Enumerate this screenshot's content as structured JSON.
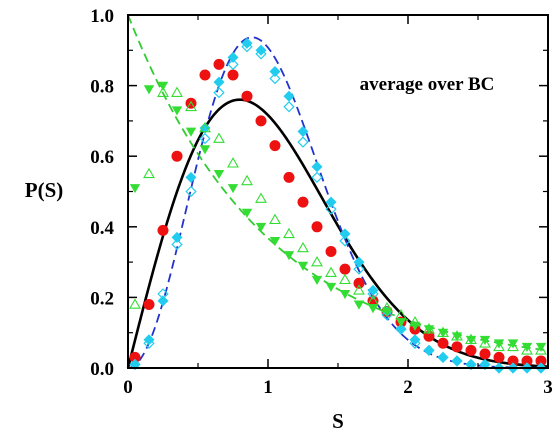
{
  "chart_data": {
    "type": "scatter",
    "xlabel": "S",
    "ylabel": "P(S)",
    "annotation": "average over BC",
    "xlim": [
      0,
      3
    ],
    "ylim": [
      0,
      1
    ],
    "xticks": [
      "0",
      "1",
      "2",
      "3"
    ],
    "yticks": [
      "0.0",
      "0.2",
      "0.4",
      "0.6",
      "0.8",
      "1.0"
    ],
    "grid": false,
    "curves": [
      {
        "id": "black-solid",
        "color": "#000000",
        "dash": "none",
        "func": "goe"
      },
      {
        "id": "blue-dashed",
        "color": "#2233cc",
        "dash": "dashed",
        "func": "gue"
      },
      {
        "id": "green-dashed",
        "color": "#33cc33",
        "dash": "dashed",
        "func": "poisson"
      }
    ],
    "series": [
      {
        "marker": "circle-filled",
        "color": "#ee1111",
        "x": [
          0.05,
          0.15,
          0.25,
          0.35,
          0.45,
          0.55,
          0.65,
          0.75,
          0.85,
          0.95,
          1.05,
          1.15,
          1.25,
          1.35,
          1.45,
          1.55,
          1.65,
          1.75,
          1.85,
          1.95,
          2.05,
          2.15,
          2.25,
          2.35,
          2.45,
          2.55,
          2.65,
          2.75,
          2.85,
          2.95
        ],
        "y": [
          0.03,
          0.18,
          0.39,
          0.6,
          0.75,
          0.83,
          0.86,
          0.83,
          0.77,
          0.7,
          0.63,
          0.54,
          0.47,
          0.4,
          0.33,
          0.28,
          0.24,
          0.19,
          0.16,
          0.13,
          0.11,
          0.09,
          0.07,
          0.06,
          0.05,
          0.04,
          0.03,
          0.02,
          0.02,
          0.02
        ]
      },
      {
        "marker": "diamond-filled",
        "color": "#22ccee",
        "x": [
          0.05,
          0.15,
          0.25,
          0.35,
          0.45,
          0.55,
          0.65,
          0.75,
          0.85,
          0.95,
          1.05,
          1.15,
          1.25,
          1.35,
          1.45,
          1.55,
          1.65,
          1.75,
          1.85,
          1.95,
          2.05,
          2.15,
          2.25,
          2.35,
          2.45,
          2.55,
          2.65,
          2.75,
          2.85,
          2.95
        ],
        "y": [
          0.01,
          0.08,
          0.19,
          0.37,
          0.54,
          0.68,
          0.81,
          0.88,
          0.92,
          0.9,
          0.84,
          0.77,
          0.67,
          0.57,
          0.47,
          0.38,
          0.3,
          0.22,
          0.16,
          0.11,
          0.08,
          0.05,
          0.03,
          0.02,
          0.01,
          0.01,
          0.0,
          0.0,
          0.0,
          0.0
        ]
      },
      {
        "marker": "diamond-open",
        "color": "#22ccee",
        "x": [
          0.05,
          0.15,
          0.25,
          0.35,
          0.45,
          0.55,
          0.65,
          0.75,
          0.85,
          0.95,
          1.05,
          1.15,
          1.25,
          1.35,
          1.45,
          1.55,
          1.65,
          1.75,
          1.85,
          1.95,
          2.05,
          2.15,
          2.25,
          2.35,
          2.45,
          2.55,
          2.65,
          2.75,
          2.85,
          2.95
        ],
        "y": [
          0.01,
          0.07,
          0.21,
          0.35,
          0.5,
          0.65,
          0.78,
          0.86,
          0.91,
          0.89,
          0.82,
          0.74,
          0.64,
          0.54,
          0.45,
          0.36,
          0.28,
          0.21,
          0.15,
          0.11,
          0.07,
          0.05,
          0.03,
          0.02,
          0.01,
          0.01,
          0.0,
          0.0,
          0.0,
          0.0
        ]
      },
      {
        "marker": "triangle-down-filled",
        "color": "#33dd33",
        "x": [
          0.05,
          0.15,
          0.25,
          0.35,
          0.45,
          0.55,
          0.65,
          0.75,
          0.85,
          0.95,
          1.05,
          1.15,
          1.25,
          1.35,
          1.45,
          1.55,
          1.65,
          1.75,
          1.85,
          1.95,
          2.05,
          2.15,
          2.25,
          2.35,
          2.45,
          2.55,
          2.65,
          2.75,
          2.85,
          2.95
        ],
        "y": [
          0.51,
          0.79,
          0.8,
          0.73,
          0.67,
          0.62,
          0.55,
          0.51,
          0.44,
          0.4,
          0.36,
          0.32,
          0.29,
          0.25,
          0.23,
          0.21,
          0.18,
          0.17,
          0.16,
          0.13,
          0.12,
          0.11,
          0.1,
          0.09,
          0.08,
          0.08,
          0.07,
          0.07,
          0.06,
          0.06
        ]
      },
      {
        "marker": "triangle-up-open",
        "color": "#33dd33",
        "x": [
          0.05,
          0.15,
          0.25,
          0.35,
          0.45,
          0.55,
          0.65,
          0.75,
          0.85,
          0.95,
          1.05,
          1.15,
          1.25,
          1.35,
          1.45,
          1.55,
          1.65,
          1.75,
          1.85,
          1.95,
          2.05,
          2.15,
          2.25,
          2.35,
          2.45,
          2.55,
          2.65,
          2.75,
          2.85,
          2.95
        ],
        "y": [
          0.18,
          0.55,
          0.78,
          0.78,
          0.74,
          0.68,
          0.65,
          0.58,
          0.53,
          0.48,
          0.42,
          0.38,
          0.34,
          0.3,
          0.27,
          0.25,
          0.22,
          0.19,
          0.17,
          0.15,
          0.13,
          0.11,
          0.1,
          0.09,
          0.08,
          0.07,
          0.06,
          0.06,
          0.05,
          0.05
        ]
      }
    ]
  }
}
